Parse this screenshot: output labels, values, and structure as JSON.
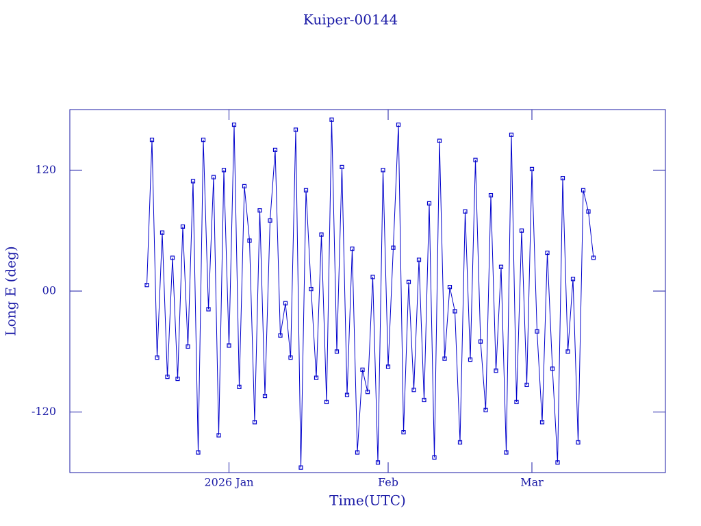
{
  "chart_data": {
    "type": "line",
    "title": "Kuiper-00144",
    "x_label": "Time(UTC)",
    "y_label": "Long E (deg)",
    "color": "#0000cc",
    "x": [
      -16,
      -15,
      -14,
      -13,
      -12,
      -11,
      -10,
      -9,
      -8,
      -7,
      -6,
      -5,
      -4,
      -3,
      -2,
      -1,
      0,
      1,
      2,
      3,
      4,
      5,
      6,
      7,
      8,
      9,
      10,
      11,
      12,
      13,
      14,
      15,
      16,
      17,
      18,
      19,
      20,
      21,
      22,
      23,
      24,
      25,
      26,
      27,
      28,
      29,
      30,
      31,
      32,
      33,
      34,
      35,
      36,
      37,
      38,
      39,
      40,
      41,
      42,
      43,
      44,
      45,
      46,
      47,
      48,
      49,
      50,
      51,
      52,
      53,
      54,
      55,
      56,
      57,
      58,
      59,
      60,
      61,
      62,
      63,
      64,
      65,
      66,
      67,
      68,
      69,
      70,
      71
    ],
    "values": [
      6,
      150,
      -66,
      58,
      -85,
      33,
      -87,
      64,
      -55,
      109,
      -160,
      150,
      -18,
      113,
      -143,
      120,
      -54,
      165,
      -95,
      104,
      50,
      -130,
      80,
      -104,
      70,
      140,
      -44,
      -12,
      -66,
      160,
      -175,
      100,
      2,
      -86,
      56,
      -110,
      170,
      -60,
      123,
      -103,
      42,
      -160,
      -78,
      -100,
      14,
      -170,
      120,
      -75,
      43,
      165,
      -140,
      9,
      -98,
      31,
      -108,
      87,
      -165,
      149,
      -67,
      4,
      -20,
      -150,
      79,
      -68,
      130,
      -50,
      -118,
      95,
      -79,
      24,
      -160,
      155,
      -110,
      60,
      -93,
      121,
      -40,
      -130,
      38,
      -77,
      -170,
      112,
      -60,
      12,
      -150,
      100,
      79,
      33
    ],
    "xlim": [
      -31,
      85
    ],
    "xticks": [
      {
        "value": 0,
        "label": "2026 Jan"
      },
      {
        "value": 31,
        "label": "Feb"
      },
      {
        "value": 59,
        "label": "Mar"
      }
    ],
    "ylim": [
      -180,
      180
    ],
    "yticks": [
      -120,
      {
        "value": 0,
        "label": "00"
      },
      120
    ]
  }
}
